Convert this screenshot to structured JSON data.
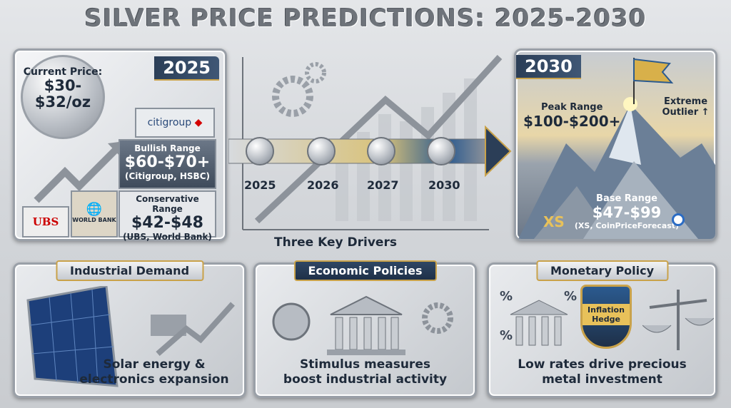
{
  "title": "SILVER PRICE PREDICTIONS: 2025-2030",
  "left_panel": {
    "year": "2025",
    "current_price_label": "Current Price:",
    "current_price_value_1": "$30-",
    "current_price_value_2": "$32/oz",
    "bullish": {
      "label": "Bullish Range",
      "value": "$60-$70+",
      "sources": "(Citigroup, HSBC)"
    },
    "conservative": {
      "label": "Conservative Range",
      "value": "$42-$48",
      "sources": "(UBS, World Bank)"
    },
    "logos": {
      "citigroup": "citigroup",
      "ubs": "UBS",
      "world_bank": "WORLD BANK"
    }
  },
  "timeline": {
    "years": [
      "2025",
      "2026",
      "2027",
      "2030"
    ],
    "caption": "Three Key Drivers"
  },
  "right_panel": {
    "year": "2030",
    "peak": {
      "label": "Peak Range",
      "value": "$100-$200+"
    },
    "outlier": "Extreme Outlier ↑",
    "base": {
      "label": "Base Range",
      "value": "$47-$99",
      "sources": "(XS, CoinPriceForecast)"
    },
    "logos": {
      "xs": "XS"
    }
  },
  "drivers": [
    {
      "title": "Industrial Demand",
      "caption_1": "Solar energy &",
      "caption_2": "electronics expansion"
    },
    {
      "title": "Economic Policies",
      "caption_1": "Stimulus measures",
      "caption_2": "boost industrial activity"
    },
    {
      "title": "Monetary Policy",
      "caption_1": "Low rates drive precious",
      "caption_2": "metal investment",
      "badge": "Inflation Hedge"
    }
  ],
  "colors": {
    "navy": "#2b3e57",
    "gold": "#c9a24a",
    "silver": "#b7bcc3"
  }
}
